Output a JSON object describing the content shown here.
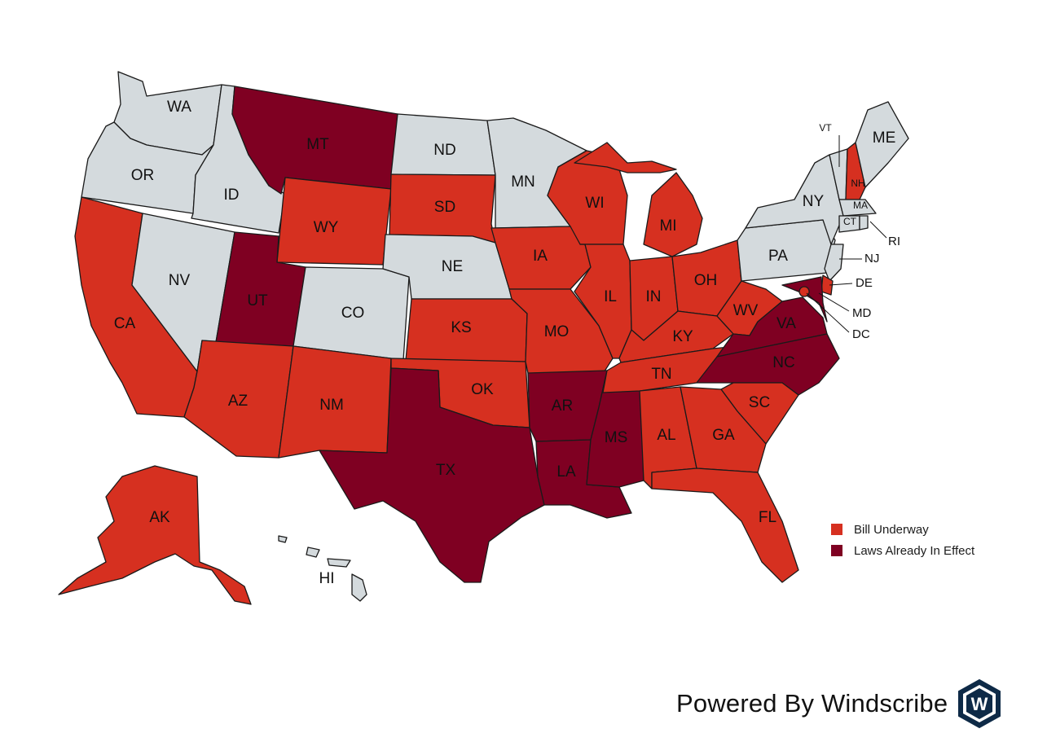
{
  "legend": {
    "items": [
      {
        "label": "Bill Underway",
        "color": "#d63020"
      },
      {
        "label": "Laws Already In Effect",
        "color": "#7f0022"
      }
    ]
  },
  "colors": {
    "no_action": "#d4dadd",
    "bill_underway": "#d63020",
    "law_in_effect": "#7f0022"
  },
  "brand": {
    "text": "Powered By Windscribe",
    "logo_letter": "W"
  },
  "states": [
    {
      "code": "WA",
      "status": "none"
    },
    {
      "code": "OR",
      "status": "none"
    },
    {
      "code": "CA",
      "status": "bill"
    },
    {
      "code": "ID",
      "status": "none"
    },
    {
      "code": "NV",
      "status": "none"
    },
    {
      "code": "MT",
      "status": "law"
    },
    {
      "code": "WY",
      "status": "bill"
    },
    {
      "code": "UT",
      "status": "law"
    },
    {
      "code": "AZ",
      "status": "bill"
    },
    {
      "code": "CO",
      "status": "none"
    },
    {
      "code": "NM",
      "status": "bill"
    },
    {
      "code": "ND",
      "status": "none"
    },
    {
      "code": "SD",
      "status": "bill"
    },
    {
      "code": "NE",
      "status": "none"
    },
    {
      "code": "KS",
      "status": "bill"
    },
    {
      "code": "OK",
      "status": "bill"
    },
    {
      "code": "TX",
      "status": "law"
    },
    {
      "code": "MN",
      "status": "none"
    },
    {
      "code": "IA",
      "status": "bill"
    },
    {
      "code": "MO",
      "status": "bill"
    },
    {
      "code": "AR",
      "status": "law"
    },
    {
      "code": "LA",
      "status": "law"
    },
    {
      "code": "WI",
      "status": "bill"
    },
    {
      "code": "IL",
      "status": "bill"
    },
    {
      "code": "MS",
      "status": "law"
    },
    {
      "code": "MI",
      "status": "bill"
    },
    {
      "code": "IN",
      "status": "bill"
    },
    {
      "code": "KY",
      "status": "bill"
    },
    {
      "code": "TN",
      "status": "bill"
    },
    {
      "code": "AL",
      "status": "bill"
    },
    {
      "code": "OH",
      "status": "bill"
    },
    {
      "code": "WV",
      "status": "bill"
    },
    {
      "code": "GA",
      "status": "bill"
    },
    {
      "code": "FL",
      "status": "bill"
    },
    {
      "code": "SC",
      "status": "bill"
    },
    {
      "code": "NC",
      "status": "law"
    },
    {
      "code": "VA",
      "status": "law"
    },
    {
      "code": "PA",
      "status": "none"
    },
    {
      "code": "NY",
      "status": "none"
    },
    {
      "code": "VT",
      "status": "none"
    },
    {
      "code": "NH",
      "status": "bill"
    },
    {
      "code": "ME",
      "status": "none"
    },
    {
      "code": "MA",
      "status": "none"
    },
    {
      "code": "CT",
      "status": "none"
    },
    {
      "code": "RI",
      "status": "none"
    },
    {
      "code": "NJ",
      "status": "none"
    },
    {
      "code": "DE",
      "status": "bill"
    },
    {
      "code": "MD",
      "status": "law"
    },
    {
      "code": "DC",
      "status": "bill"
    },
    {
      "code": "AK",
      "status": "bill"
    },
    {
      "code": "HI",
      "status": "none"
    }
  ]
}
